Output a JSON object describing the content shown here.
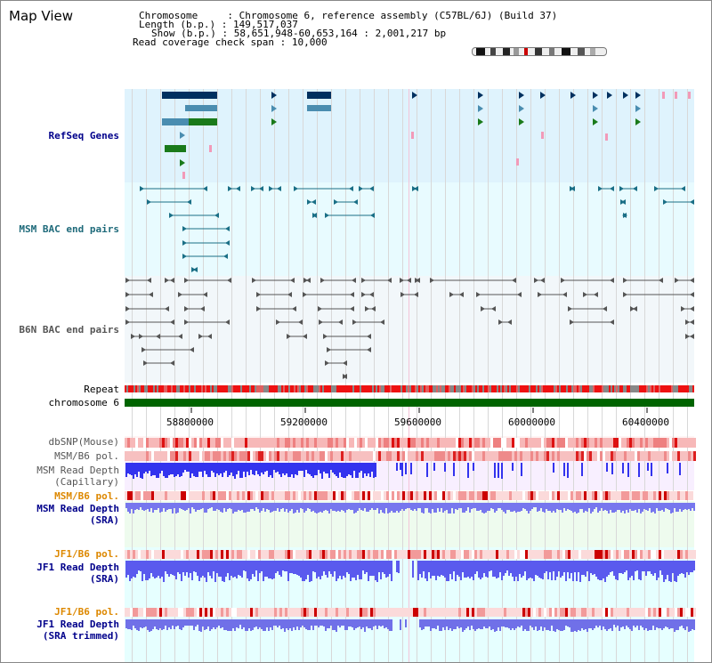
{
  "view": {
    "title": "Map View",
    "header": [
      {
        "key": "Chromosome",
        "value": "Chromosome 6, reference assembly (C57BL/6J) (Build 37)"
      },
      {
        "key": "Length (b.p.)",
        "value": "149,517,037"
      },
      {
        "key": "Show (b.p.)",
        "value": "58,651,948-60,653,164 : 2,001,217 bp"
      },
      {
        "key": "Read coverage check span",
        "value": "10,000"
      }
    ]
  },
  "tracks": {
    "refseq": "RefSeq Genes",
    "msm_bac": "MSM BAC end pairs",
    "b6n_bac": "B6N BAC end pairs",
    "repeat": "Repeat",
    "chromosome": "chromosome 6",
    "dbsnp": "dbSNP(Mouse)",
    "msm_b6_pol_1": "MSM/B6 pol.",
    "msm_depth_cap_1": "MSM Read Depth",
    "msm_depth_cap_2": "(Capillary)",
    "msm_b6_pol_2": "MSM/B6 pol.",
    "msm_depth_sra_1": "MSM Read Depth",
    "msm_depth_sra_2": "(SRA)",
    "jf1_b6_pol_1": "JF1/B6 pol.",
    "jf1_depth_1": "JF1 Read Depth",
    "jf1_depth_2": "(SRA)",
    "jf1_b6_pol_2": "JF1/B6 pol.",
    "jf1_trim_1": "JF1 Read Depth",
    "jf1_trim_2": "(SRA trimmed)"
  },
  "ruler": {
    "ticks": [
      "58800000",
      "59200000",
      "59600000",
      "60000000",
      "60400000"
    ]
  },
  "colors": {
    "refseq_bg": "#dff3fd",
    "msm_bg": "#e8fbff",
    "b6n_bg": "#f2f7fa",
    "chromosome_bar": "#006400",
    "repeat_red": "#ee1111",
    "repeat_gray": "#888888",
    "depth_blue": "#2222ee",
    "depth_light": "#7777ee",
    "gene_navy": "#00305f",
    "gene_blue": "#4a8db0",
    "gene_green": "#1a7a1a",
    "bac_teal": "#1a6f86",
    "bac_gray": "#555555"
  }
}
